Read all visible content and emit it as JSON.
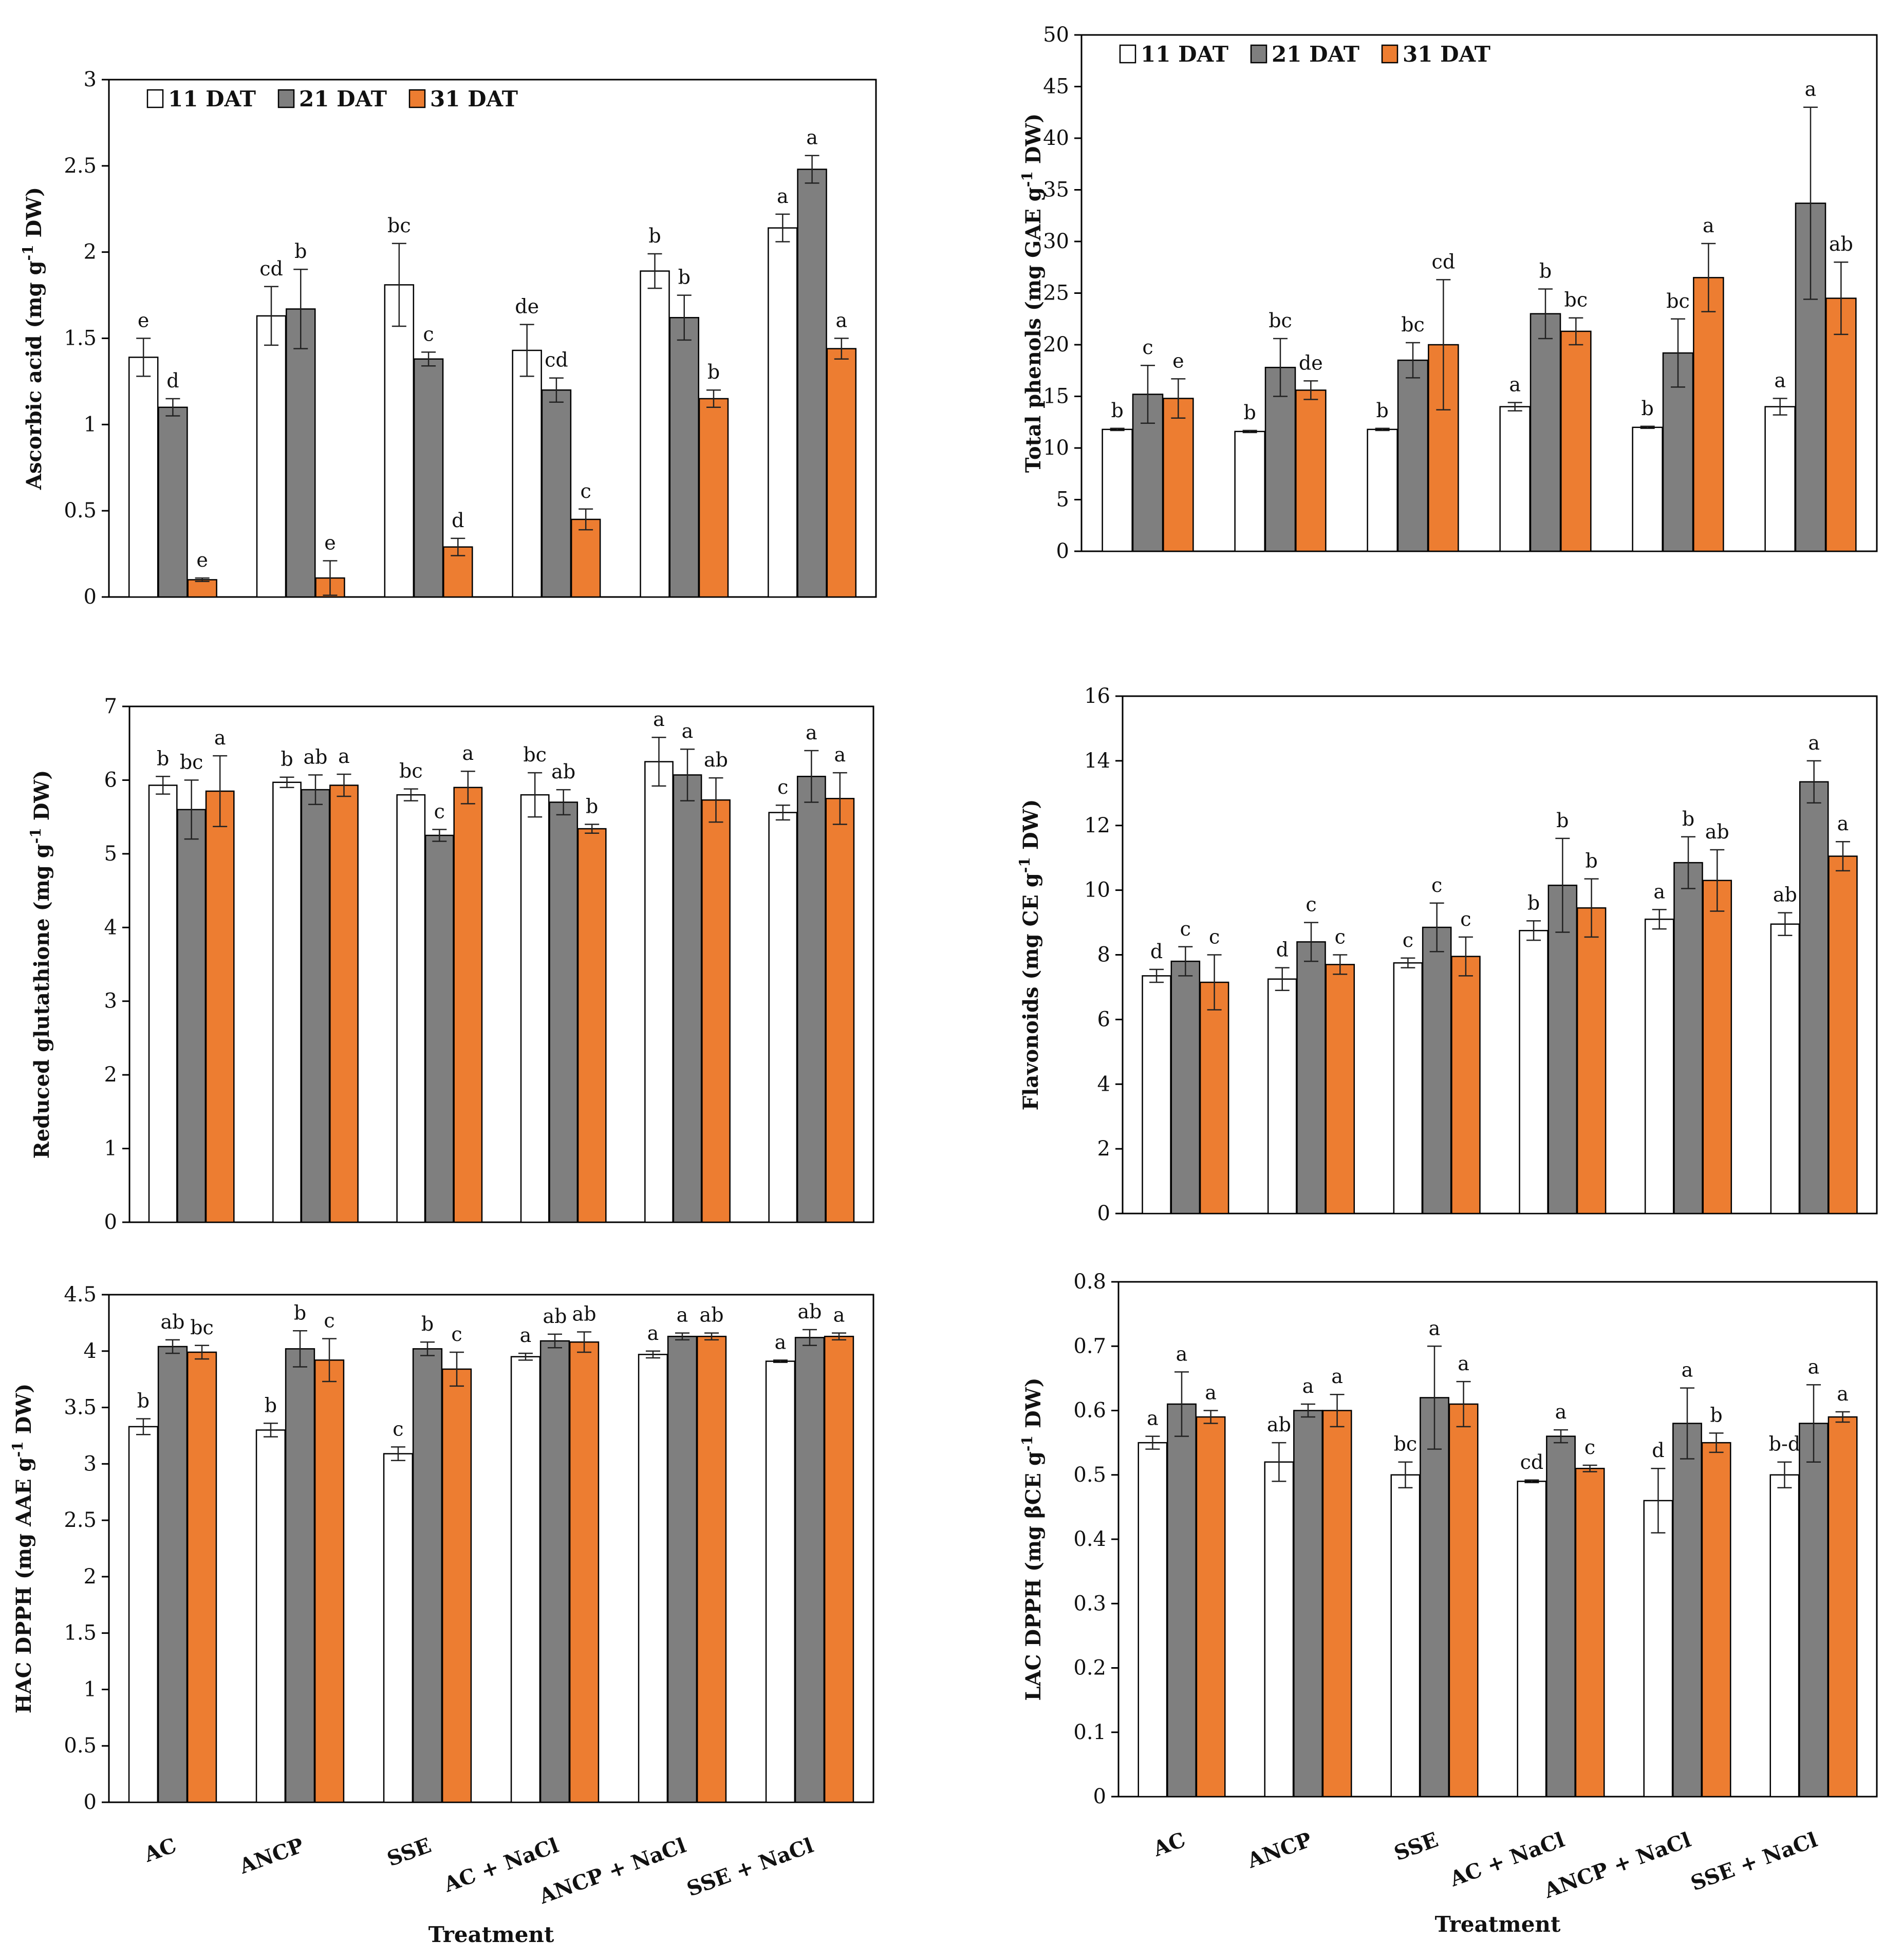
{
  "figure": {
    "legend": [
      "11 DAT",
      "21 DAT",
      "31 DAT"
    ],
    "x_title": "Treatment",
    "colors": {
      "s11": "#ffffff",
      "s21": "#7f7f7f",
      "s31": "#ed7d31",
      "stroke": "#000000"
    }
  },
  "chart_data": [
    {
      "type": "bar",
      "ylabel": "Ascorbic acid (mg g-1 DW)",
      "ylabel_main": "Ascorbic acid (mg g",
      "ylabel_sup": "-1",
      "ylabel_tail": " DW)",
      "ylim": [
        0,
        3
      ],
      "yticks": [
        0,
        0.5,
        1,
        1.5,
        2,
        2.5,
        3
      ],
      "categories": [
        "AC",
        "ANCP",
        "SSE",
        "AC + NaCl",
        "ANCP + NaCl",
        "SSE + NaCl"
      ],
      "show_legend": true,
      "show_category_labels": false,
      "series": [
        {
          "name": "11 DAT",
          "values": [
            1.39,
            1.63,
            1.81,
            1.43,
            1.89,
            2.14
          ],
          "errors": [
            0.11,
            0.17,
            0.24,
            0.15,
            0.1,
            0.08
          ],
          "letters": [
            "e",
            "cd",
            "bc",
            "de",
            "b",
            "a"
          ]
        },
        {
          "name": "21 DAT",
          "values": [
            1.1,
            1.67,
            1.38,
            1.2,
            1.62,
            2.48
          ],
          "errors": [
            0.05,
            0.23,
            0.04,
            0.07,
            0.13,
            0.08
          ],
          "letters": [
            "d",
            "b",
            "c",
            "cd",
            "b",
            "a"
          ]
        },
        {
          "name": "31 DAT",
          "values": [
            0.1,
            0.11,
            0.29,
            0.45,
            1.15,
            1.44
          ],
          "errors": [
            0.01,
            0.1,
            0.05,
            0.06,
            0.05,
            0.06
          ],
          "letters": [
            "e",
            "e",
            "d",
            "c",
            "b",
            "a"
          ]
        }
      ]
    },
    {
      "type": "bar",
      "ylabel": "Total phenols (mg GAE g-1 DW)",
      "ylabel_main": "Total phenols (mg GAE g",
      "ylabel_sup": "-1",
      "ylabel_tail": " DW)",
      "ylim": [
        0,
        50
      ],
      "yticks": [
        0,
        5,
        10,
        15,
        20,
        25,
        30,
        35,
        40,
        45,
        50
      ],
      "categories": [
        "AC",
        "ANCP",
        "SSE",
        "AC + NaCl",
        "ANCP + NaCl",
        "SSE + NaCl"
      ],
      "show_legend": true,
      "show_category_labels": false,
      "series": [
        {
          "name": "11 DAT",
          "values": [
            11.8,
            11.6,
            11.8,
            14.0,
            12.0,
            14.0
          ],
          "errors": [
            0.1,
            0.1,
            0.1,
            0.4,
            0.1,
            0.8
          ],
          "letters": [
            "b",
            "b",
            "b",
            "a",
            "b",
            "a"
          ]
        },
        {
          "name": "21 DAT",
          "values": [
            15.2,
            17.8,
            18.5,
            23.0,
            19.2,
            33.7
          ],
          "errors": [
            2.8,
            2.8,
            1.7,
            2.4,
            3.3,
            9.3
          ],
          "letters": [
            "c",
            "bc",
            "bc",
            "b",
            "bc",
            "a"
          ]
        },
        {
          "name": "31 DAT",
          "values": [
            14.8,
            15.6,
            20.0,
            21.3,
            26.5,
            24.5
          ],
          "errors": [
            1.9,
            0.9,
            6.3,
            1.3,
            3.3,
            3.5
          ],
          "letters": [
            "e",
            "de",
            "cd",
            "bc",
            "a",
            "ab"
          ]
        }
      ]
    },
    {
      "type": "bar",
      "ylabel": "Reduced glutathione (mg g-1 DW)",
      "ylabel_main": "Reduced glutathione (mg g",
      "ylabel_sup": "-1",
      "ylabel_tail": " DW)",
      "ylim": [
        0,
        7
      ],
      "yticks": [
        0,
        1,
        2,
        3,
        4,
        5,
        6,
        7
      ],
      "categories": [
        "AC",
        "ANCP",
        "SSE",
        "AC + NaCl",
        "ANCP + NaCl",
        "SSE + NaCl"
      ],
      "show_legend": false,
      "show_category_labels": false,
      "series": [
        {
          "name": "11 DAT",
          "values": [
            5.93,
            5.97,
            5.8,
            5.8,
            6.25,
            5.56
          ],
          "errors": [
            0.12,
            0.07,
            0.08,
            0.3,
            0.33,
            0.1
          ],
          "letters": [
            "b",
            "b",
            "bc",
            "bc",
            "a",
            "c"
          ]
        },
        {
          "name": "21 DAT",
          "values": [
            5.6,
            5.87,
            5.25,
            5.7,
            6.07,
            6.05
          ],
          "errors": [
            0.4,
            0.2,
            0.08,
            0.17,
            0.35,
            0.35
          ],
          "letters": [
            "bc",
            "ab",
            "c",
            "ab",
            "a",
            "a"
          ]
        },
        {
          "name": "31 DAT",
          "values": [
            5.85,
            5.93,
            5.9,
            5.34,
            5.73,
            5.75
          ],
          "errors": [
            0.48,
            0.15,
            0.22,
            0.06,
            0.3,
            0.35
          ],
          "letters": [
            "a",
            "a",
            "a",
            "b",
            "ab",
            "a"
          ]
        }
      ]
    },
    {
      "type": "bar",
      "ylabel": "Flavonoids (mg CE g-1 DW)",
      "ylabel_main": "Flavonoids (mg CE g",
      "ylabel_sup": "-1",
      "ylabel_tail": " DW)",
      "ylim": [
        0,
        16
      ],
      "yticks": [
        0,
        2,
        4,
        6,
        8,
        10,
        12,
        14,
        16
      ],
      "categories": [
        "AC",
        "ANCP",
        "SSE",
        "AC + NaCl",
        "ANCP + NaCl",
        "SSE + NaCl"
      ],
      "show_legend": false,
      "show_category_labels": false,
      "series": [
        {
          "name": "11 DAT",
          "values": [
            7.35,
            7.25,
            7.75,
            8.75,
            9.1,
            8.95
          ],
          "errors": [
            0.2,
            0.35,
            0.15,
            0.3,
            0.3,
            0.35
          ],
          "letters": [
            "d",
            "d",
            "c",
            "b",
            "a",
            "ab"
          ]
        },
        {
          "name": "21 DAT",
          "values": [
            7.8,
            8.4,
            8.85,
            10.15,
            10.85,
            13.35
          ],
          "errors": [
            0.45,
            0.6,
            0.75,
            1.45,
            0.8,
            0.65
          ],
          "letters": [
            "c",
            "c",
            "c",
            "b",
            "b",
            "a"
          ]
        },
        {
          "name": "31 DAT",
          "values": [
            7.15,
            7.7,
            7.95,
            9.45,
            10.3,
            11.05
          ],
          "errors": [
            0.85,
            0.3,
            0.6,
            0.9,
            0.95,
            0.45
          ],
          "letters": [
            "c",
            "c",
            "c",
            "b",
            "ab",
            "a"
          ]
        }
      ]
    },
    {
      "type": "bar",
      "ylabel": "HAC DPPH (mg AAE g-1 DW)",
      "ylabel_main": "HAC DPPH (mg AAE g",
      "ylabel_sup": "-1",
      "ylabel_tail": " DW)",
      "ylim": [
        0,
        4.5
      ],
      "yticks": [
        0,
        0.5,
        1,
        1.5,
        2,
        2.5,
        3,
        3.5,
        4,
        4.5
      ],
      "categories": [
        "AC",
        "ANCP",
        "SSE",
        "AC + NaCl",
        "ANCP + NaCl",
        "SSE + NaCl"
      ],
      "show_legend": false,
      "show_category_labels": true,
      "series": [
        {
          "name": "11 DAT",
          "values": [
            3.33,
            3.3,
            3.09,
            3.95,
            3.97,
            3.91
          ],
          "errors": [
            0.07,
            0.06,
            0.06,
            0.03,
            0.03,
            0.01
          ],
          "letters": [
            "b",
            "b",
            "c",
            "a",
            "a",
            "a"
          ]
        },
        {
          "name": "21 DAT",
          "values": [
            4.04,
            4.02,
            4.02,
            4.09,
            4.13,
            4.12
          ],
          "errors": [
            0.06,
            0.16,
            0.06,
            0.06,
            0.03,
            0.07
          ],
          "letters": [
            "ab",
            "b",
            "b",
            "ab",
            "a",
            "ab"
          ]
        },
        {
          "name": "31 DAT",
          "values": [
            3.99,
            3.92,
            3.84,
            4.08,
            4.13,
            4.13
          ],
          "errors": [
            0.06,
            0.19,
            0.15,
            0.09,
            0.03,
            0.03
          ],
          "letters": [
            "bc",
            "c",
            "c",
            "ab",
            "ab",
            "a"
          ]
        }
      ]
    },
    {
      "type": "bar",
      "ylabel": "LAC DPPH (mg βCE g-1 DW)",
      "ylabel_main": "LAC DPPH (mg βCE g",
      "ylabel_sup": "-1",
      "ylabel_tail": " DW)",
      "ylim": [
        0,
        0.8
      ],
      "yticks": [
        0,
        0.1,
        0.2,
        0.3,
        0.4,
        0.5,
        0.6,
        0.7,
        0.8
      ],
      "categories": [
        "AC",
        "ANCP",
        "SSE",
        "AC + NaCl",
        "ANCP + NaCl",
        "SSE + NaCl"
      ],
      "show_legend": false,
      "show_category_labels": true,
      "series": [
        {
          "name": "11 DAT",
          "values": [
            0.55,
            0.52,
            0.5,
            0.49,
            0.46,
            0.5
          ],
          "errors": [
            0.01,
            0.03,
            0.02,
            0.002,
            0.05,
            0.02
          ],
          "letters": [
            "a",
            "ab",
            "bc",
            "cd",
            "d",
            "b-d"
          ]
        },
        {
          "name": "21 DAT",
          "values": [
            0.61,
            0.6,
            0.62,
            0.56,
            0.58,
            0.58
          ],
          "errors": [
            0.05,
            0.01,
            0.08,
            0.01,
            0.055,
            0.06
          ],
          "letters": [
            "a",
            "a",
            "a",
            "a",
            "a",
            "a"
          ]
        },
        {
          "name": "31 DAT",
          "values": [
            0.59,
            0.6,
            0.61,
            0.51,
            0.55,
            0.59
          ],
          "errors": [
            0.01,
            0.025,
            0.035,
            0.005,
            0.015,
            0.008
          ],
          "letters": [
            "a",
            "a",
            "a",
            "c",
            "b",
            "a"
          ]
        }
      ]
    }
  ]
}
